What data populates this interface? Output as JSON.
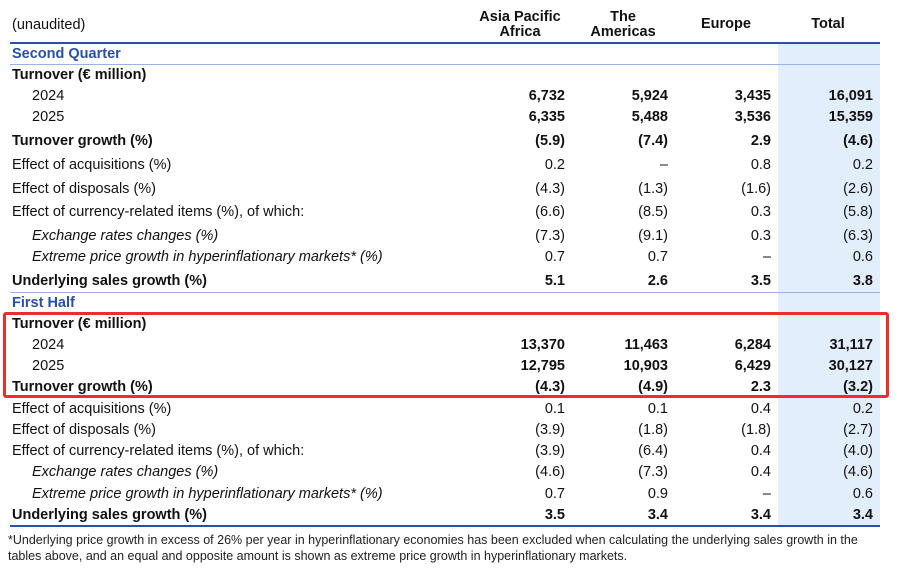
{
  "header": {
    "unaudited": "(unaudited)",
    "columns": [
      {
        "line1": "Asia Pacific",
        "line2": "Africa"
      },
      {
        "line1": "The",
        "line2": "Americas"
      },
      {
        "line1": "Europe",
        "line2": ""
      },
      {
        "line1": "Total",
        "line2": ""
      }
    ]
  },
  "q2": {
    "title": "Second Quarter",
    "turnover_label": "Turnover (€ million)",
    "rows": [
      {
        "label": "2024",
        "v": [
          "6,732",
          "5,924",
          "3,435",
          "16,091"
        ]
      },
      {
        "label": "2025",
        "v": [
          "6,335",
          "5,488",
          "3,536",
          "15,359"
        ]
      },
      {
        "label": "Turnover growth (%)",
        "v": [
          "(5.9)",
          "(7.4)",
          "2.9",
          "(4.6)"
        ]
      },
      {
        "label": "Effect of acquisitions (%)",
        "v": [
          "0.2",
          "–",
          "0.8",
          "0.2"
        ]
      },
      {
        "label": "Effect of disposals (%)",
        "v": [
          "(4.3)",
          "(1.3)",
          "(1.6)",
          "(2.6)"
        ]
      },
      {
        "label": "Effect of currency-related items (%), of which:",
        "v": [
          "(6.6)",
          "(8.5)",
          "0.3",
          "(5.8)"
        ]
      },
      {
        "label": "Exchange rates changes (%)",
        "v": [
          "(7.3)",
          "(9.1)",
          "0.3",
          "(6.3)"
        ]
      },
      {
        "label": "Extreme price growth in hyperinflationary markets* (%)",
        "v": [
          "0.7",
          "0.7",
          "–",
          "0.6"
        ]
      },
      {
        "label": "Underlying sales growth (%)",
        "v": [
          "5.1",
          "2.6",
          "3.5",
          "3.8"
        ]
      }
    ]
  },
  "h1": {
    "title": "First Half",
    "turnover_label": "Turnover (€ million)",
    "rows": [
      {
        "label": "2024",
        "v": [
          "13,370",
          "11,463",
          "6,284",
          "31,117"
        ]
      },
      {
        "label": "2025",
        "v": [
          "12,795",
          "10,903",
          "6,429",
          "30,127"
        ]
      },
      {
        "label": "Turnover growth (%)",
        "v": [
          "(4.3)",
          "(4.9)",
          "2.3",
          "(3.2)"
        ]
      },
      {
        "label": "Effect of acquisitions (%)",
        "v": [
          "0.1",
          "0.1",
          "0.4",
          "0.2"
        ]
      },
      {
        "label": "Effect of disposals (%)",
        "v": [
          "(3.9)",
          "(1.8)",
          "(1.8)",
          "(2.7)"
        ]
      },
      {
        "label": "Effect of currency-related items (%), of which:",
        "v": [
          "(3.9)",
          "(6.4)",
          "0.4",
          "(4.0)"
        ]
      },
      {
        "label": "Exchange rates changes (%)",
        "v": [
          "(4.6)",
          "(7.3)",
          "0.4",
          "(4.6)"
        ]
      },
      {
        "label": "Extreme price growth in hyperinflationary markets* (%)",
        "v": [
          "0.7",
          "0.9",
          "–",
          "0.6"
        ]
      },
      {
        "label": "Underlying sales growth (%)",
        "v": [
          "3.5",
          "3.4",
          "3.4",
          "3.4"
        ]
      }
    ]
  },
  "footnote": "*Underlying price growth in excess of 26% per year in hyperinflationary economies has been excluded when calculating the underlying sales growth in the tables above, and an equal and opposite amount is shown as extreme price growth in hyperinflationary markets.",
  "colors": {
    "accent": "#2a4fa3",
    "total_band": "#e3eefc",
    "highlight": "#e8302a"
  }
}
